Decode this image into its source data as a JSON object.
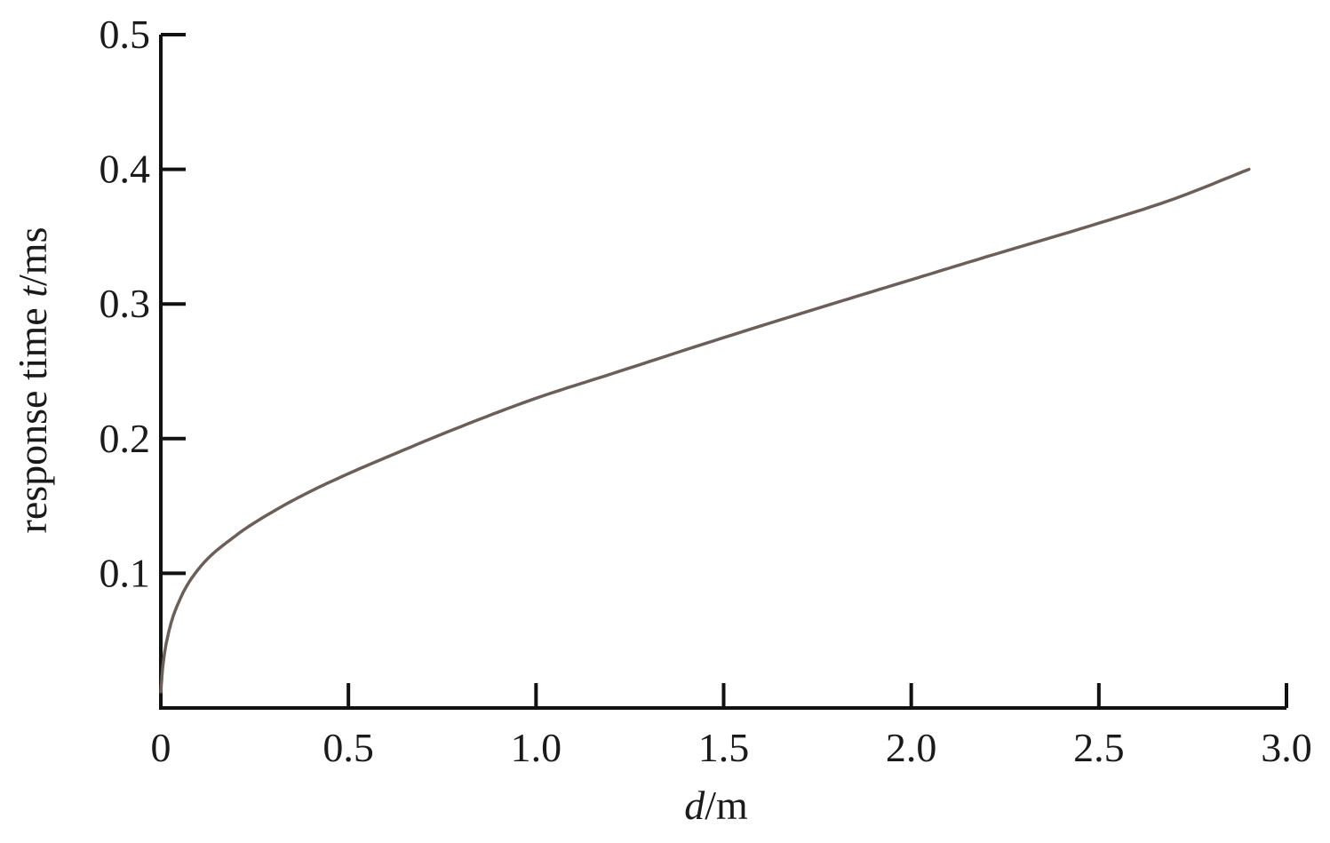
{
  "chart_data": {
    "type": "line",
    "title": "",
    "xlabel": {
      "var": "d",
      "unit": "/m"
    },
    "ylabel": {
      "prefix": "response time ",
      "var": "t",
      "unit": "/ms"
    },
    "xlim": [
      0,
      3.0
    ],
    "ylim": [
      0,
      0.5
    ],
    "x_ticks": [
      0,
      0.5,
      1.0,
      1.5,
      2.0,
      2.5,
      3.0
    ],
    "x_tick_labels": [
      "0",
      "0.5",
      "1.0",
      "1.5",
      "2.0",
      "2.5",
      "3.0"
    ],
    "y_ticks": [
      0.1,
      0.2,
      0.3,
      0.4,
      0.5
    ],
    "y_tick_labels": [
      "0.1",
      "0.2",
      "0.3",
      "0.4",
      "0.5"
    ],
    "grid": false,
    "legend": "none",
    "line_color": "#6b5f5a",
    "axis_color": "#111111",
    "series": [
      {
        "x": [
          0,
          0.005,
          0.02,
          0.05,
          0.1,
          0.2,
          0.3,
          0.4,
          0.5,
          0.6,
          0.8,
          1.0,
          1.2,
          1.5,
          1.8,
          2.0,
          2.2,
          2.5,
          2.7,
          2.9
        ],
        "values": [
          0.012,
          0.03,
          0.055,
          0.08,
          0.103,
          0.128,
          0.146,
          0.161,
          0.174,
          0.186,
          0.209,
          0.23,
          0.248,
          0.275,
          0.301,
          0.318,
          0.335,
          0.36,
          0.378,
          0.4
        ]
      }
    ]
  }
}
